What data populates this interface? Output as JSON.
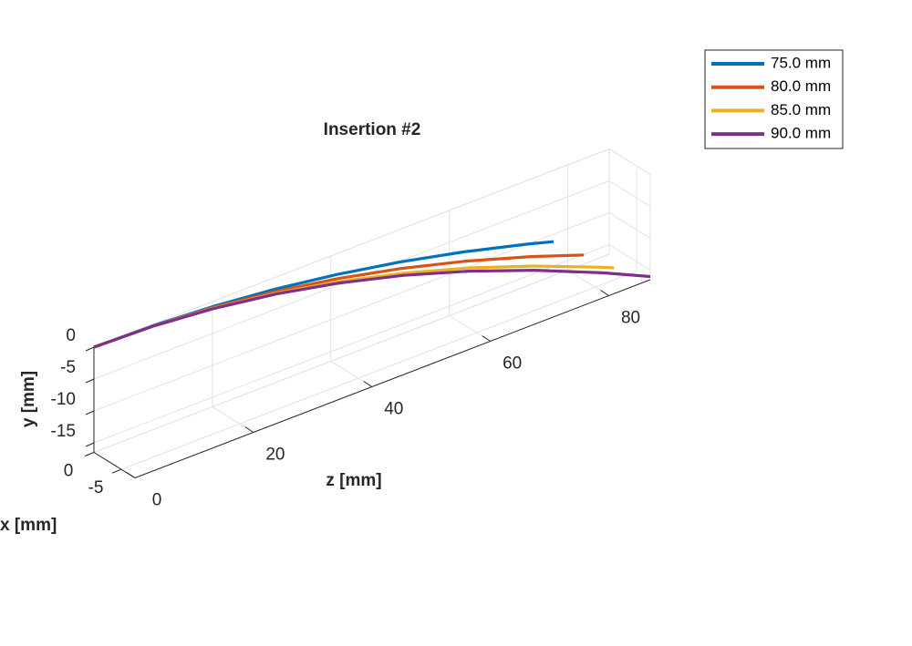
{
  "chart_data": {
    "type": "line3d",
    "title": "Insertion #2",
    "xlabel": "x [mm]",
    "ylabel": "y [mm]",
    "zlabel": "z [mm]",
    "xlim": [
      -7.5,
      0
    ],
    "ylim": [
      -16.5,
      0
    ],
    "zlim": [
      0,
      87
    ],
    "xticks": [
      -5,
      0
    ],
    "yticks": [
      -15,
      -10,
      -5,
      0
    ],
    "zticks": [
      0,
      20,
      40,
      60,
      80
    ],
    "grid": true,
    "legend": "upper right",
    "series": [
      {
        "name": "75.0 mm",
        "color": "#0072BD",
        "z": [
          0,
          10,
          20,
          30,
          40,
          50,
          60,
          70,
          74
        ],
        "x": [
          0,
          -0.07,
          -0.29,
          -0.64,
          -1.14,
          -1.78,
          -2.56,
          -3.49,
          -3.9
        ],
        "y": [
          0,
          -0.14,
          -0.57,
          -1.28,
          -2.28,
          -3.56,
          -5.13,
          -6.98,
          -7.8
        ]
      },
      {
        "name": "80.0 mm",
        "color": "#D95319",
        "z": [
          0,
          10,
          20,
          30,
          40,
          50,
          60,
          70,
          78
        ],
        "x": [
          0,
          -0.08,
          -0.34,
          -0.75,
          -1.34,
          -2.1,
          -3.02,
          -4.11,
          -5.1
        ],
        "y": [
          0,
          -0.18,
          -0.7,
          -1.58,
          -2.81,
          -4.4,
          -6.33,
          -8.61,
          -10.7
        ]
      },
      {
        "name": "85.0 mm",
        "color": "#EDB120",
        "z": [
          0,
          10,
          20,
          30,
          40,
          50,
          60,
          70,
          80,
          82
        ],
        "x": [
          0,
          -0.09,
          -0.37,
          -0.84,
          -1.5,
          -2.34,
          -3.37,
          -4.59,
          -6.0,
          -6.3
        ],
        "y": [
          0,
          -0.2,
          -0.8,
          -1.81,
          -3.21,
          -5.02,
          -7.22,
          -9.84,
          -12.85,
          -13.5
        ]
      },
      {
        "name": "90.0 mm",
        "color": "#7E2F8E",
        "z": [
          0,
          10,
          20,
          30,
          40,
          50,
          60,
          70,
          80,
          87
        ],
        "x": [
          0,
          -0.1,
          -0.4,
          -0.89,
          -1.59,
          -2.48,
          -3.57,
          -4.86,
          -6.35,
          -7.5
        ],
        "y": [
          0,
          -0.21,
          -0.85,
          -1.9,
          -3.38,
          -5.28,
          -7.61,
          -10.35,
          -13.53,
          -16
        ]
      }
    ]
  }
}
